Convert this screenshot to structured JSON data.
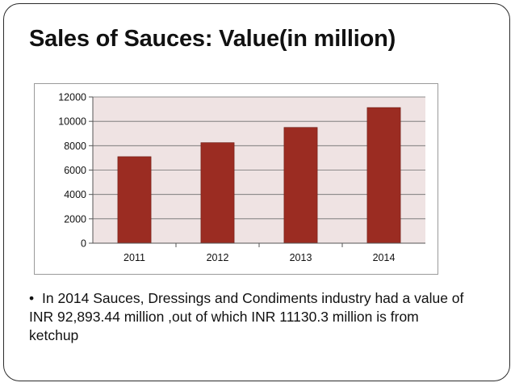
{
  "slide": {
    "title": "Sales of Sauces: Value(in million)",
    "bullet_text": "In 2014 Sauces, Dressings and Condiments industry had a value of INR 92,893.44 million ,out of which INR 11130.3 million is from ketchup"
  },
  "chart_data": {
    "type": "bar",
    "categories": [
      "2011",
      "2012",
      "2013",
      "2014"
    ],
    "values": [
      7100,
      8250,
      9500,
      11130.3
    ],
    "ylim": [
      0,
      12000
    ],
    "yticks": [
      0,
      2000,
      4000,
      6000,
      8000,
      10000,
      12000
    ],
    "title": "",
    "xlabel": "",
    "ylabel": "",
    "grid": true,
    "legend": "none",
    "colors": {
      "bar": "#9b2c22",
      "plot_background": "#efe3e3",
      "gridline": "#6e6e6e"
    }
  }
}
